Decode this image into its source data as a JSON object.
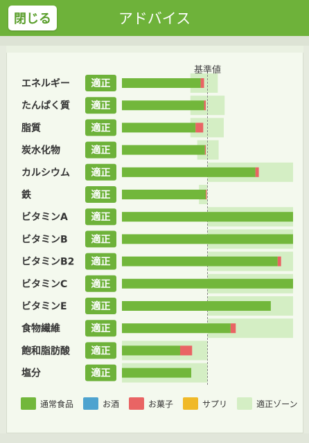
{
  "header": {
    "close_label": "閉じる",
    "title": "アドバイス"
  },
  "colors": {
    "header_bg": "#6eb23a",
    "regular_food": "#72b73b",
    "alcohol": "#4ea3cf",
    "snacks": "#e96464",
    "supplements": "#f0b928",
    "zone": "#d4eec4",
    "badge": "#6eb23a"
  },
  "chart_data": {
    "type": "bar",
    "orientation": "horizontal",
    "stacked": true,
    "reference_line_label": "基準値",
    "reference_value": 100,
    "xlim": [
      0,
      200
    ],
    "categories": [
      "エネルギー",
      "たんぱく質",
      "脂質",
      "炭水化物",
      "カルシウム",
      "鉄",
      "ビタミンA",
      "ビタミンB",
      "ビタミンB2",
      "ビタミンC",
      "ビタミンE",
      "食物繊維",
      "飽和脂肪酸",
      "塩分"
    ],
    "status": [
      "適正",
      "適正",
      "適正",
      "適正",
      "適正",
      "適正",
      "適正",
      "適正",
      "適正",
      "適正",
      "適正",
      "適正",
      "適正",
      "適正"
    ],
    "series": [
      {
        "name": "通常食品",
        "color": "#72b73b",
        "values": [
          92,
          96,
          86,
          97,
          156,
          98,
          200,
          200,
          182,
          200,
          174,
          127,
          68,
          81
        ]
      },
      {
        "name": "お酒",
        "color": "#4ea3cf",
        "values": [
          0,
          0,
          0,
          0,
          0,
          0,
          0,
          0,
          0,
          0,
          0,
          0,
          0,
          0
        ]
      },
      {
        "name": "お菓子",
        "color": "#e96464",
        "values": [
          4,
          2,
          9,
          1,
          4,
          1,
          0,
          0,
          4,
          0,
          0,
          6,
          14,
          0
        ]
      },
      {
        "name": "サプリ",
        "color": "#f0b928",
        "values": [
          0,
          0,
          0,
          0,
          0,
          0,
          0,
          0,
          0,
          0,
          0,
          0,
          0,
          0
        ]
      }
    ],
    "zones": [
      [
        80,
        112
      ],
      [
        80,
        120
      ],
      [
        80,
        119
      ],
      [
        88,
        113
      ],
      [
        100,
        200
      ],
      [
        90,
        100
      ],
      [
        100,
        200
      ],
      [
        100,
        200
      ],
      [
        100,
        200
      ],
      [
        100,
        200
      ],
      [
        100,
        200
      ],
      [
        100,
        200
      ],
      [
        0,
        100
      ],
      [
        0,
        100
      ]
    ],
    "legend": [
      {
        "label": "通常食品",
        "color": "#72b73b"
      },
      {
        "label": "お酒",
        "color": "#4ea3cf"
      },
      {
        "label": "お菓子",
        "color": "#e96464"
      },
      {
        "label": "サプリ",
        "color": "#f0b928"
      },
      {
        "label": "適正ゾーン",
        "color": "#d4eec4"
      }
    ]
  }
}
